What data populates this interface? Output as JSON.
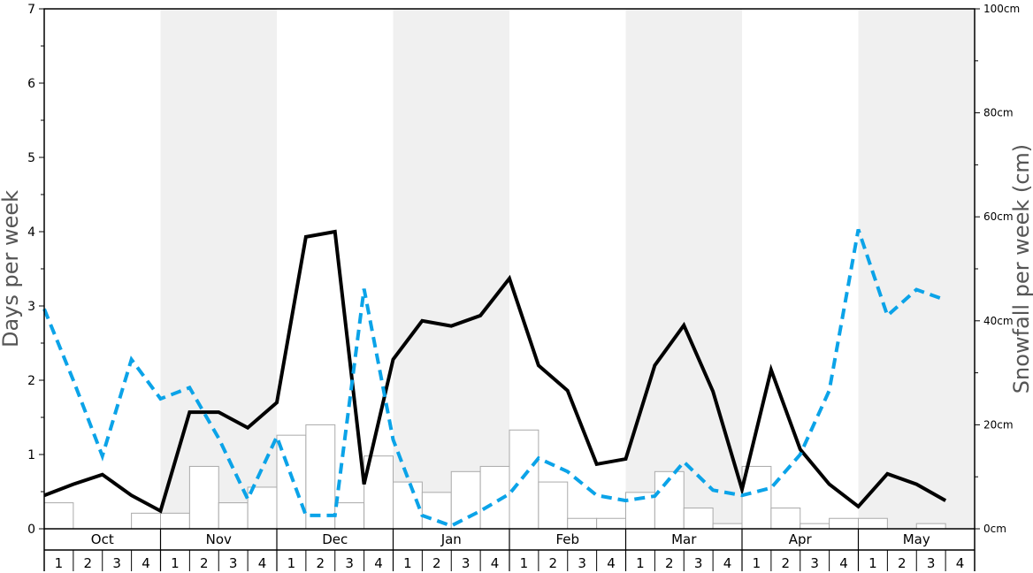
{
  "chart_data": {
    "type": "bar",
    "months": [
      "Oct",
      "Nov",
      "Dec",
      "Jan",
      "Feb",
      "Mar",
      "Apr",
      "May"
    ],
    "weeks": [
      "1",
      "2",
      "3",
      "4"
    ],
    "ylabel_left": "Days per week",
    "ylabel_right": "Snowfall per week (cm)",
    "ylim_left": [
      0,
      7
    ],
    "ylim_right": [
      0,
      100
    ],
    "left_ticks": [
      "0",
      "1",
      "2",
      "3",
      "4",
      "5",
      "6",
      "7"
    ],
    "right_ticks": [
      "0cm",
      "20cm",
      "40cm",
      "60cm",
      "80cm",
      "100cm"
    ],
    "colors": {
      "bar_fill": "#ffffff",
      "bar_stroke": "#aaaaaa",
      "line_solid": "#000000",
      "line_dashed": "#0ba3e8",
      "band": "#f0f0f0"
    },
    "series": [
      {
        "type": "bar",
        "axis": "right",
        "values": [
          5,
          0,
          0,
          3,
          3,
          12,
          5,
          8,
          18,
          20,
          5,
          14,
          9,
          7,
          11,
          12,
          19,
          9,
          2,
          2,
          7,
          11,
          4,
          1,
          12,
          4,
          1,
          2,
          2,
          0,
          1,
          0
        ]
      },
      {
        "type": "line",
        "style": "solid",
        "axis": "left",
        "values": [
          0.45,
          0.6,
          0.73,
          0.45,
          0.24,
          1.57,
          1.57,
          1.36,
          1.7,
          3.93,
          4.0,
          0.6,
          2.28,
          2.8,
          2.73,
          2.87,
          3.37,
          2.2,
          1.86,
          0.87,
          0.94,
          2.2,
          2.74,
          1.85,
          0.53,
          2.14,
          1.07,
          0.6,
          0.3,
          0.74,
          0.6,
          0.38
        ]
      },
      {
        "type": "line",
        "style": "dashed",
        "axis": "left",
        "values": [
          2.96,
          2.0,
          0.98,
          2.28,
          1.75,
          1.9,
          1.22,
          0.4,
          1.24,
          0.18,
          0.18,
          3.23,
          1.2,
          0.18,
          0.04,
          0.24,
          0.47,
          0.95,
          0.77,
          0.45,
          0.38,
          0.44,
          0.9,
          0.52,
          0.45,
          0.55,
          1.0,
          1.86,
          4.03,
          2.87,
          3.22,
          3.08
        ]
      }
    ]
  }
}
